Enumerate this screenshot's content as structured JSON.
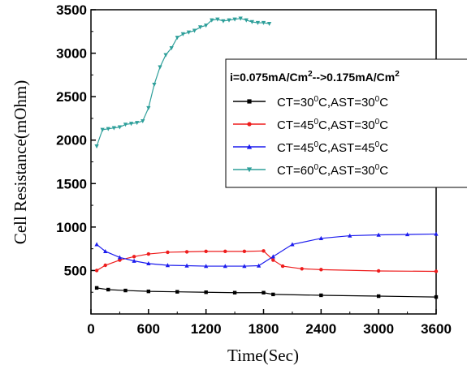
{
  "chart_data": {
    "type": "line",
    "xlabel": "Time(Sec)",
    "ylabel": "Cell Resistance(mOhm)",
    "xlim": [
      0,
      3600
    ],
    "ylim": [
      0,
      3500
    ],
    "x_ticks": [
      "0",
      "600",
      "1200",
      "1800",
      "2400",
      "3000",
      "3600"
    ],
    "y_ticks": [
      "500",
      "1000",
      "1500",
      "2000",
      "2500",
      "3000",
      "3500"
    ],
    "grid": false,
    "legend_position": "top-right",
    "legend_title": {
      "prefix": "i=0.075mA/Cm",
      "sup1": "2",
      "middle": "-->0.175mA/Cm",
      "sup2": "2"
    },
    "series": [
      {
        "name": "CT=30⁰C,AST=30⁰C",
        "label_parts": [
          "CT=30",
          "0",
          "C,AST=30",
          "0",
          "C"
        ],
        "color": "#000000",
        "marker": "square",
        "x": [
          60,
          180,
          360,
          600,
          900,
          1200,
          1500,
          1800,
          1900,
          2400,
          3000,
          3600
        ],
        "y": [
          300,
          280,
          270,
          260,
          255,
          250,
          245,
          245,
          225,
          215,
          205,
          195
        ]
      },
      {
        "name": "CT=45⁰C,AST=30⁰C",
        "label_parts": [
          "CT=45",
          "0",
          "C,AST=30",
          "0",
          "C"
        ],
        "color": "#ee1c1c",
        "marker": "circle",
        "x": [
          60,
          150,
          300,
          450,
          600,
          800,
          1000,
          1200,
          1400,
          1600,
          1800,
          1900,
          2000,
          2200,
          2400,
          3000,
          3600
        ],
        "y": [
          500,
          560,
          620,
          660,
          690,
          710,
          715,
          720,
          720,
          720,
          725,
          620,
          550,
          520,
          510,
          495,
          490
        ]
      },
      {
        "name": "CT=45⁰C,AST=45⁰C",
        "label_parts": [
          "CT=45",
          "0",
          "C,AST=45",
          "0",
          "C"
        ],
        "color": "#1c1cee",
        "marker": "triangle-up",
        "x": [
          60,
          150,
          300,
          450,
          600,
          800,
          1000,
          1200,
          1400,
          1600,
          1750,
          1900,
          2100,
          2400,
          2700,
          3000,
          3300,
          3600
        ],
        "y": [
          800,
          720,
          650,
          610,
          580,
          560,
          555,
          550,
          550,
          550,
          555,
          660,
          800,
          870,
          900,
          910,
          915,
          920
        ]
      },
      {
        "name": "CT=60⁰C,AST=30⁰C",
        "label_parts": [
          "CT=60",
          "0",
          "C,AST=30",
          "0",
          "C"
        ],
        "color": "#2e9f9a",
        "marker": "triangle-down",
        "x": [
          60,
          120,
          180,
          240,
          300,
          360,
          420,
          480,
          540,
          600,
          660,
          720,
          780,
          840,
          900,
          960,
          1020,
          1080,
          1140,
          1200,
          1260,
          1320,
          1380,
          1440,
          1500,
          1560,
          1620,
          1680,
          1740,
          1800,
          1860
        ],
        "y": [
          1930,
          2120,
          2130,
          2140,
          2150,
          2180,
          2190,
          2200,
          2220,
          2370,
          2640,
          2840,
          2980,
          3060,
          3180,
          3220,
          3240,
          3260,
          3300,
          3320,
          3380,
          3390,
          3370,
          3380,
          3390,
          3400,
          3380,
          3360,
          3350,
          3350,
          3340
        ]
      }
    ]
  }
}
